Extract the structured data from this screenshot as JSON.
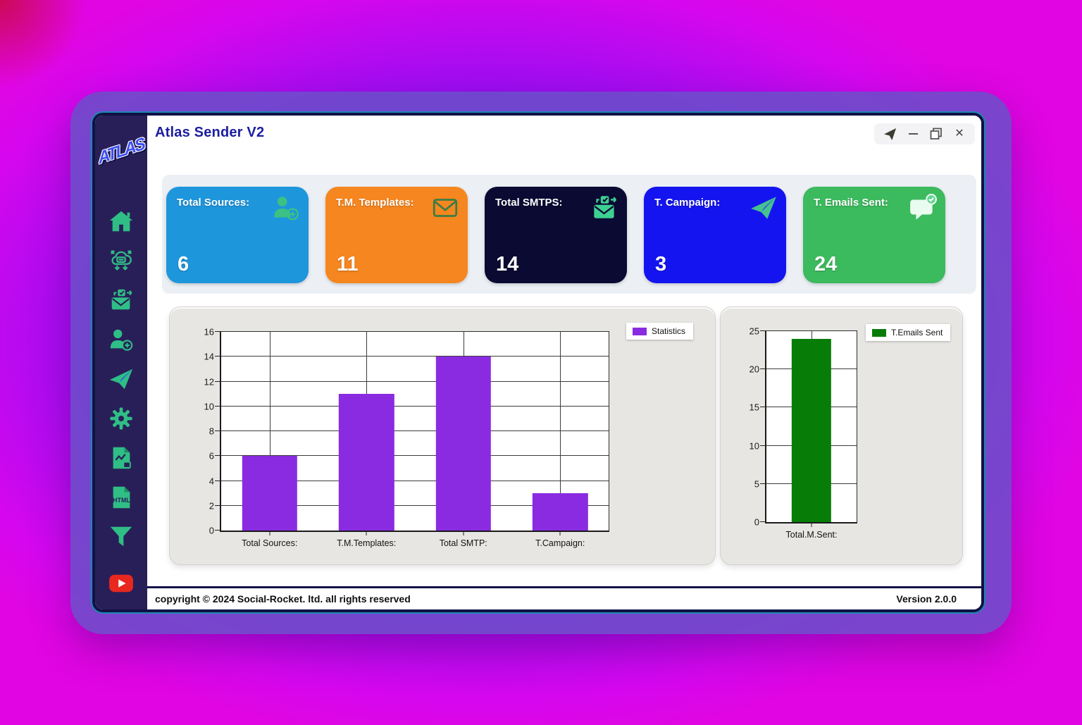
{
  "window": {
    "title": "Atlas Sender V2",
    "controls_icons": [
      "send-icon",
      "minimize-icon",
      "maximize-icon",
      "close-icon"
    ]
  },
  "sidebar": {
    "logo_text": "ATLAS",
    "icons": [
      "home-icon",
      "cloud-bot-icon",
      "mail-check-icon",
      "user-add-icon",
      "paper-plane-icon",
      "gear-icon",
      "report-file-icon",
      "html-file-icon",
      "filter-icon",
      "youtube-icon"
    ]
  },
  "cards": [
    {
      "label": "Total Sources:",
      "value": "6",
      "color": "#1e96dc",
      "icon": "user-add-icon"
    },
    {
      "label": "T.M. Templates:",
      "value": "11",
      "color": "#f6861f",
      "icon": "envelope-icon"
    },
    {
      "label": "Total SMTPS:",
      "value": "14",
      "color": "#0a0a33",
      "icon": "mail-check-icon"
    },
    {
      "label": "T. Campaign:",
      "value": "3",
      "color": "#1414f0",
      "icon": "paper-plane-icon"
    },
    {
      "label": "T. Emails Sent:",
      "value": "24",
      "color": "#3cba5e",
      "icon": "chat-check-icon"
    }
  ],
  "chart_data": [
    {
      "type": "bar",
      "categories": [
        "Total Sources:",
        "T.M.Templates:",
        "Total SMTP:",
        "T.Campaign:"
      ],
      "values": [
        6,
        11,
        14,
        3
      ],
      "title": "",
      "xlabel": "",
      "ylabel": "",
      "ylim": [
        0,
        16
      ],
      "ytick_step": 2,
      "bar_color": "#8a2be2",
      "bar_width_frac": 0.57,
      "grid": true,
      "legend": [
        {
          "label": "Statistics",
          "color": "#8a2be2"
        }
      ],
      "legend_position": "top-right"
    },
    {
      "type": "bar",
      "categories": [
        "Total.M.Sent:"
      ],
      "values": [
        24
      ],
      "title": "",
      "xlabel": "",
      "ylabel": "",
      "ylim": [
        0,
        25
      ],
      "ytick_step": 5,
      "bar_color": "#077d07",
      "bar_width_frac": 0.44,
      "grid": true,
      "legend": [
        {
          "label": "T.Emails Sent",
          "color": "#077d07"
        }
      ],
      "legend_position": "top-right"
    }
  ],
  "footer": {
    "copyright": "copyright © 2024 Social-Rocket. ltd. all rights reserved",
    "version": "Version 2.0.0"
  },
  "colors": {
    "background_purple": "#7b11f0",
    "background_magenta": "#d507ee",
    "sidebar": "#291f58",
    "sidebar_icon_green": "#2fbe85",
    "title_navy": "#1b1d9e",
    "window_border": "#101145",
    "teal_accent": "#1a8cb0"
  }
}
